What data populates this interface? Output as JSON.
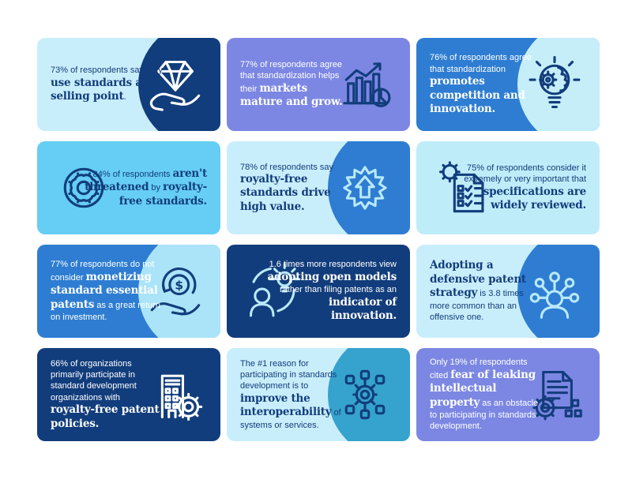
{
  "page": {
    "background": "#ffffff",
    "description": "standards-survey-infographic"
  },
  "palette": {
    "navy": "#123d7c",
    "blue": "#2e7dd2",
    "teal": "#35a3cd",
    "purple": "#7c87e3",
    "sky_blue": "#66cef4",
    "light_cyan": "#c9eefb",
    "circle_cyan": "#b9e8f9",
    "icon_light": "#b9e9fa",
    "white": "#ffffff"
  },
  "cards": [
    {
      "bg": "#c9eefb",
      "text_color": "#123d7c",
      "icon": "diamond-hand-icon",
      "icon_color": "#ffffff",
      "icon_side": "right",
      "circle_color": "#123d7c",
      "segments": [
        {
          "text": "73% of respondents say they ",
          "bold": false
        },
        {
          "text": "use standards as a selling point",
          "bold": true
        },
        {
          "text": ".",
          "bold": false
        }
      ]
    },
    {
      "bg": "#7c87e3",
      "text_color": "#ffffff",
      "icon": "bar-chart-growth-icon",
      "icon_color": "#123d7c",
      "icon_side": "right",
      "circle_color": null,
      "segments": [
        {
          "text": "77% of respondents agree that standardization helps their ",
          "bold": false
        },
        {
          "text": "markets mature and grow.",
          "bold": true
        }
      ]
    },
    {
      "bg": "#2e7dd2",
      "text_color": "#ffffff",
      "icon": "bulb-brain-gear-icon",
      "icon_color": "#123d7c",
      "icon_side": "right",
      "circle_color": "#c5eef9",
      "segments": [
        {
          "text": "76% of respondents agree that standardization ",
          "bold": false
        },
        {
          "text": "promotes competition and innovation.",
          "bold": true
        }
      ]
    },
    {
      "bg": "#66cef4",
      "text_color": "#123d7c",
      "icon": "donut-icon",
      "icon_color": "#123d7c",
      "icon_side": "left",
      "circle_color": null,
      "segments": [
        {
          "text": "84% of respondents ",
          "bold": false
        },
        {
          "text": "aren't threatened",
          "bold": true
        },
        {
          "text": " by ",
          "bold": false
        },
        {
          "text": "royalty-free standards.",
          "bold": true
        }
      ]
    },
    {
      "bg": "#c9eefb",
      "text_color": "#123d7c",
      "icon": "badge-arrow-up-icon",
      "icon_color": "#b9e9fa",
      "icon_side": "right",
      "circle_color": "#2e7dd2",
      "segments": [
        {
          "text": "78% of respondents say ",
          "bold": false
        },
        {
          "text": "royalty-free standards drive high value.",
          "bold": true
        }
      ]
    },
    {
      "bg": "#bfecf9",
      "text_color": "#123d7c",
      "icon": "checklist-gear-icon",
      "icon_color": "#123d7c",
      "icon_side": "left",
      "circle_color": null,
      "segments": [
        {
          "text": "75% of respondents consider it extremely or very important that ",
          "bold": false
        },
        {
          "text": "specifications are widely reviewed.",
          "bold": true
        }
      ]
    },
    {
      "bg": "#2e7dd2",
      "text_color": "#ffffff",
      "icon": "hand-dollar-refresh-icon",
      "icon_color": "#123d7c",
      "icon_side": "right",
      "circle_color": "#abe4f8",
      "segments": [
        {
          "text": "77% of respondents do not consider ",
          "bold": false
        },
        {
          "text": "monetizing standard essential patents",
          "bold": true
        },
        {
          "text": " as a great return on investment.",
          "bold": false
        }
      ]
    },
    {
      "bg": "#123d7c",
      "text_color": "#ffffff",
      "icon": "person-lightbulb-icon",
      "icon_color": "#b9e9fa",
      "icon_side": "left",
      "circle_color": null,
      "segments": [
        {
          "text": "1.6 times more respondents view ",
          "bold": false
        },
        {
          "text": "adopting open models",
          "bold": true
        },
        {
          "text": " rather than filing patents as an ",
          "bold": false
        },
        {
          "text": "indicator of innovation.",
          "bold": true
        }
      ]
    },
    {
      "bg": "#c9eefb",
      "text_color": "#123d7c",
      "icon": "person-network-icon",
      "icon_color": "#b9e9fa",
      "icon_side": "right",
      "circle_color": "#2e7dd2",
      "segments": [
        {
          "text": "Adopting a defensive patent strategy",
          "bold": true
        },
        {
          "text": " is 3.8 times more common than an offensive one.",
          "bold": false
        }
      ]
    },
    {
      "bg": "#123d7c",
      "text_color": "#ffffff",
      "icon": "building-gear-icon",
      "icon_color": "#ffffff",
      "icon_side": "right",
      "circle_color": null,
      "segments": [
        {
          "text": "66% of organizations primarily participate in standard development organizations with ",
          "bold": false
        },
        {
          "text": "royalty-free patent policies.",
          "bold": true
        }
      ]
    },
    {
      "bg": "#c9eefb",
      "text_color": "#123d7c",
      "icon": "gear-network-icon",
      "icon_color": "#123d7c",
      "icon_side": "right",
      "circle_color": "#35a3cd",
      "segments": [
        {
          "text": "The #1 reason for participating in standards development is to ",
          "bold": false
        },
        {
          "text": "improve the interoperability",
          "bold": true
        },
        {
          "text": " of systems or services.",
          "bold": false
        }
      ]
    },
    {
      "bg": "#7c87e3",
      "text_color": "#ffffff",
      "icon": "document-gear-icon",
      "icon_color": "#123d7c",
      "icon_side": "right",
      "circle_color": null,
      "segments": [
        {
          "text": "Only 19% of respondents cited ",
          "bold": false
        },
        {
          "text": "fear of leaking intellectual property",
          "bold": true
        },
        {
          "text": " as an obstacle to participating in standards development.",
          "bold": false
        }
      ]
    }
  ]
}
